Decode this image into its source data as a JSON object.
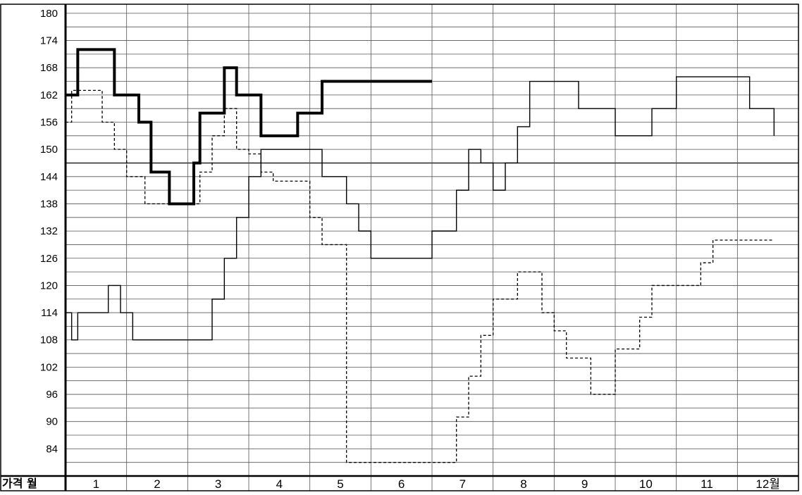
{
  "chart_data": {
    "type": "line",
    "step": true,
    "corner_label": "가격 월",
    "x_unit": "월",
    "x_range_months": [
      0,
      12
    ],
    "ylim": [
      78,
      182
    ],
    "y_ticks": [
      180,
      174,
      168,
      162,
      156,
      150,
      144,
      138,
      132,
      126,
      120,
      114,
      108,
      102,
      96,
      90,
      84
    ],
    "minor_gridline_step": 3,
    "reference_line": 147,
    "categories": [
      "1",
      "2",
      "3",
      "4",
      "5",
      "6",
      "7",
      "8",
      "9",
      "10",
      "11",
      "12월"
    ],
    "grid": true,
    "legend": "none",
    "series": [
      {
        "style": "thick-solid",
        "x": [
          0,
          0.2,
          0.8,
          1.2,
          1.4,
          1.7,
          2.1,
          2.2,
          2.6,
          2.8,
          3.2,
          3.6,
          3.8,
          4.2,
          4.4,
          4.6,
          5.1,
          5.5,
          6.0
        ],
        "y": [
          162,
          172,
          162,
          156,
          145,
          138,
          147,
          158,
          168,
          162,
          153,
          153,
          158,
          165,
          165,
          165,
          165,
          165,
          165
        ]
      },
      {
        "style": "solid",
        "x": [
          0,
          0.1,
          0.2,
          0.7,
          0.9,
          1.1,
          1.4,
          1.6,
          2.4,
          2.6,
          2.8,
          3.0,
          3.2,
          3.4,
          3.5,
          4.2,
          4.4,
          4.6,
          4.8,
          5.0,
          5.6,
          5.7,
          5.8,
          6.0,
          6.4,
          6.6,
          6.8,
          7.0,
          7.2,
          7.4,
          7.6,
          7.8,
          8.4,
          8.6,
          9.0,
          9.4,
          9.6,
          10.0,
          10.2,
          11.2,
          11.6
        ],
        "y": [
          114,
          108,
          114,
          120,
          114,
          108,
          108,
          108,
          117,
          126,
          135,
          144,
          150,
          150,
          150,
          144,
          144,
          138,
          132,
          126,
          126,
          126,
          126,
          132,
          141,
          150,
          147,
          141,
          147,
          155,
          165,
          165,
          159,
          159,
          153,
          153,
          159,
          166,
          166,
          159,
          153
        ]
      },
      {
        "style": "dashed",
        "x": [
          0,
          0.1,
          0.6,
          0.8,
          1.0,
          1.3,
          2.2,
          2.4,
          2.6,
          2.8,
          3.0,
          3.2,
          3.4,
          3.6,
          4.0,
          4.2,
          4.4,
          4.6,
          4.9,
          5.0,
          6.0,
          6.2,
          6.4,
          6.6,
          6.8,
          7.0,
          7.4,
          7.6,
          7.8,
          8.0,
          8.2,
          8.6,
          9.0,
          9.2,
          9.4,
          9.6,
          9.8,
          10.2,
          10.4,
          10.6,
          10.8,
          11.2,
          11.6
        ],
        "y": [
          156,
          163,
          156,
          150,
          144,
          138,
          145,
          153,
          159,
          150,
          149,
          145,
          143,
          143,
          135,
          129,
          129,
          81,
          81,
          81,
          81,
          81,
          91,
          100,
          109,
          117,
          123,
          123,
          114,
          110,
          104,
          96,
          106,
          106,
          113,
          120,
          120,
          120,
          125,
          130,
          130,
          130,
          130
        ]
      }
    ]
  }
}
